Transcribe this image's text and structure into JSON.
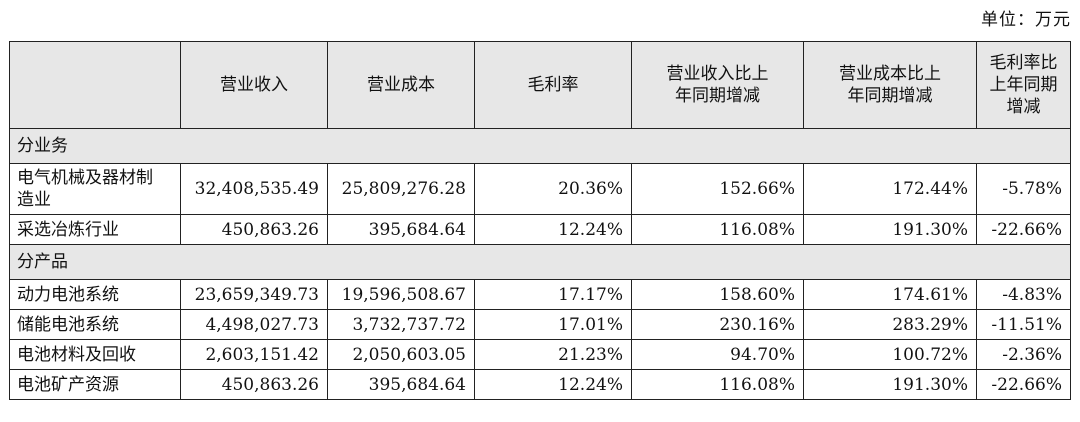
{
  "unit_label": "单位：万元",
  "headers": [
    "",
    "营业收入",
    "营业成本",
    "毛利率",
    "营业收入比上年同期增减",
    "营业成本比上年同期增减",
    "毛利率比上年同期增减"
  ],
  "sections": [
    {
      "title": "分业务",
      "rows": [
        {
          "label": "电气机械及器材制造业",
          "revenue": "32,408,535.49",
          "cost": "25,809,276.28",
          "margin": "20.36%",
          "rev_change": "152.66%",
          "cost_change": "172.44%",
          "margin_change": "-5.78%"
        },
        {
          "label": "采选冶炼行业",
          "revenue": "450,863.26",
          "cost": "395,684.64",
          "margin": "12.24%",
          "rev_change": "116.08%",
          "cost_change": "191.30%",
          "margin_change": "-22.66%"
        }
      ]
    },
    {
      "title": "分产品",
      "rows": [
        {
          "label": "动力电池系统",
          "revenue": "23,659,349.73",
          "cost": "19,596,508.67",
          "margin": "17.17%",
          "rev_change": "158.60%",
          "cost_change": "174.61%",
          "margin_change": "-4.83%"
        },
        {
          "label": "储能电池系统",
          "revenue": "4,498,027.73",
          "cost": "3,732,737.72",
          "margin": "17.01%",
          "rev_change": "230.16%",
          "cost_change": "283.29%",
          "margin_change": "-11.51%"
        },
        {
          "label": "电池材料及回收",
          "revenue": "2,603,151.42",
          "cost": "2,050,603.05",
          "margin": "21.23%",
          "rev_change": "94.70%",
          "cost_change": "100.72%",
          "margin_change": "-2.36%"
        },
        {
          "label": "电池矿产资源",
          "revenue": "450,863.26",
          "cost": "395,684.64",
          "margin": "12.24%",
          "rev_change": "116.08%",
          "cost_change": "191.30%",
          "margin_change": "-22.66%"
        }
      ]
    }
  ]
}
